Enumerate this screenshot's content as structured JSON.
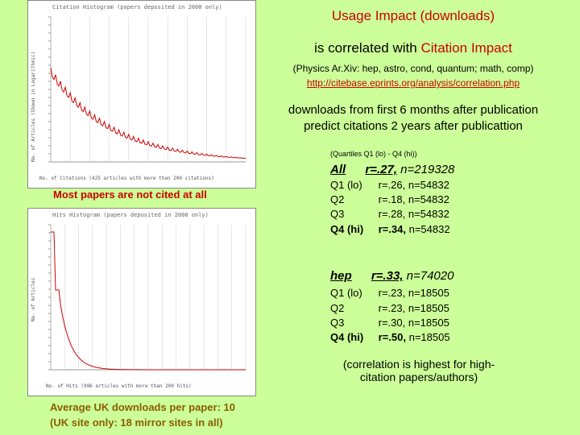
{
  "title": "Usage Impact (downloads)",
  "subtitle_prefix": "is correlated with",
  "subtitle_red": "Citation Impact",
  "archives": "(Physics Ar.Xiv: hep, astro, cond, quantum; math, comp)",
  "url": "http://citebase.eprints.org/analysis/correlation.php",
  "claim_line1": "downloads from first 6 months after publication",
  "claim_line2": "predict citations 2 years after publicattion",
  "quartiles_note": "(Quartiles Q1 (lo) - Q4 (hi))",
  "all_group": {
    "name": "All",
    "r": "r=.27,",
    "n": "n=219328",
    "rows": [
      {
        "label": "Q1 (lo)",
        "r": "r=.26,",
        "n": "n=54832"
      },
      {
        "label": "Q2",
        "r": "r=.18,",
        "n": "n=54832"
      },
      {
        "label": "Q3",
        "r": "r=.28,",
        "n": "n=54832"
      },
      {
        "label": "Q4 (hi)",
        "r": "r=.34,",
        "n": "n=54832"
      }
    ]
  },
  "hep_group": {
    "name": "hep",
    "r": "r=.33,",
    "n": "n=74020",
    "rows": [
      {
        "label": "Q1 (lo)",
        "r": "r=.23,",
        "n": "n=18505"
      },
      {
        "label": "Q2",
        "r": "r=.23,",
        "n": "n=18505"
      },
      {
        "label": "Q3",
        "r": "r=.30,",
        "n": "n=18505"
      },
      {
        "label": "Q4 (hi)",
        "r": "r=.50,",
        "n": "n=18505"
      }
    ]
  },
  "correlation_note": "(correlation is highest for high-citation papers/authors)",
  "caption_uncited": "Most papers are not cited at all",
  "footer_line1": "Average UK downloads per paper: 10",
  "footer_line2": "(UK site only: 18 mirror sites in all)",
  "chart1": {
    "title": "Citation Histogram (papers deposited in 2000 only)",
    "ylabel": "No. of Articles (Shown in Logarithmic)",
    "xlabel": "No. of Citations (425 articles with more than 200 citations)"
  },
  "chart2": {
    "title": "Hits Histogram (papers deposited in 2000 only)",
    "ylabel": "No. of Articles",
    "xlabel": "No. of Hits (996 articles with more than 200 hits)"
  },
  "colors": {
    "background": "#ccff99",
    "accent": "#cc0000",
    "footer": "#8b5c00"
  }
}
